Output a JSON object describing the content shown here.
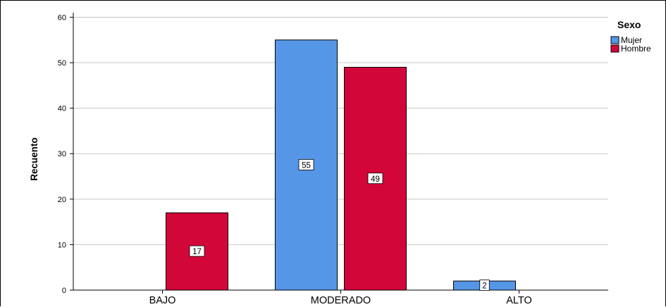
{
  "chart_data": {
    "type": "bar",
    "title": "",
    "xlabel": "",
    "ylabel": "Recuento",
    "categories": [
      "BAJO",
      "MODERADO",
      "ALTO"
    ],
    "yticks": [
      0,
      10,
      20,
      30,
      40,
      50,
      60
    ],
    "ylim": [
      0,
      61
    ],
    "grid": true,
    "legend": {
      "title": "Sexo",
      "placement": "top-right"
    },
    "series": [
      {
        "name": "Mujer",
        "color": "#5596e6",
        "values": [
          null,
          55,
          2
        ],
        "labels": [
          "",
          "55",
          "2"
        ]
      },
      {
        "name": "Hombre",
        "color": "#d3063a",
        "values": [
          17,
          49,
          null
        ],
        "labels": [
          "17",
          "49",
          ""
        ]
      }
    ]
  }
}
